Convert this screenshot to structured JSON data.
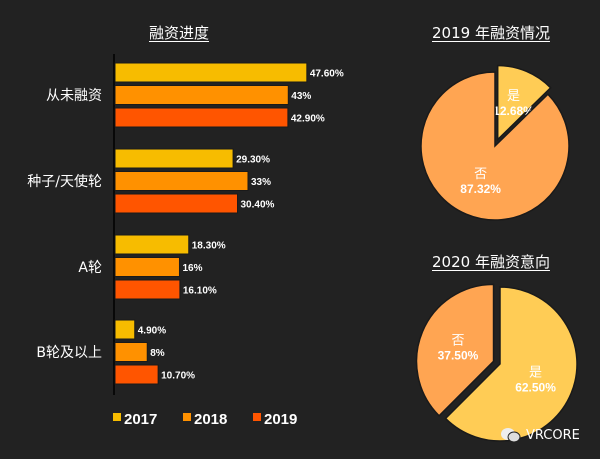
{
  "chart_data": [
    {
      "type": "bar",
      "orientation": "horizontal",
      "title": "融资进度",
      "categories": [
        "从未融资",
        "种子/天使轮",
        "A轮",
        "B轮及以上"
      ],
      "series": [
        {
          "name": "2017",
          "color": "#F7BC00",
          "values": [
            47.6,
            29.3,
            18.3,
            4.9
          ],
          "labels": [
            "47.60%",
            "29.30%",
            "18.30%",
            "4.90%"
          ]
        },
        {
          "name": "2018",
          "color": "#FF9100",
          "values": [
            43,
            33,
            16,
            8
          ],
          "labels": [
            "43%",
            "33%",
            "16%",
            "8%"
          ]
        },
        {
          "name": "2019",
          "color": "#FF5500",
          "values": [
            42.9,
            30.4,
            16.1,
            10.7
          ],
          "labels": [
            "42.90%",
            "30.40%",
            "16.10%",
            "10.70%"
          ]
        }
      ],
      "xlabel": "",
      "ylabel": "",
      "legend": "bottom",
      "grid": false
    },
    {
      "type": "pie",
      "title": "2019 年融资情况",
      "slices": [
        {
          "label": "是",
          "value": 12.68,
          "text": "12.68%",
          "color": "#FFCC55",
          "exploded": true
        },
        {
          "label": "否",
          "value": 87.32,
          "text": "87.32%",
          "color": "#FFA552",
          "exploded": false
        }
      ]
    },
    {
      "type": "pie",
      "title": "2020 年融资意向",
      "slices": [
        {
          "label": "是",
          "value": 62.5,
          "text": "62.50%",
          "color": "#FFCC55",
          "exploded": false
        },
        {
          "label": "否",
          "value": 37.5,
          "text": "37.50%",
          "color": "#FFA552",
          "exploded": true
        }
      ]
    }
  ],
  "watermark": {
    "icon": "wechat-icon",
    "text": "VRCORE"
  }
}
